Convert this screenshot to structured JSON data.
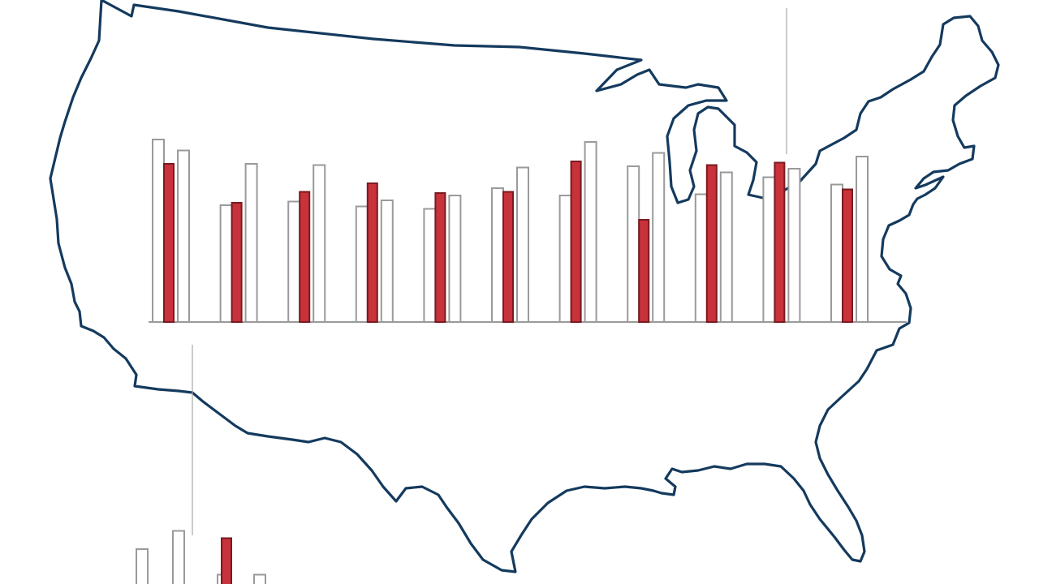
{
  "colors": {
    "outline": "#143a5e",
    "bar_red": "#c8323a",
    "bar_red_edge": "#7a1a20",
    "bar_outline": "#9a9a9a",
    "guide": "#a8a8a8",
    "baseline": "#9a9a9a"
  },
  "chart_data": [
    {
      "type": "bar",
      "title": "",
      "xlabel": "",
      "ylabel": "",
      "grid": false,
      "legend": "none",
      "categories": [
        "",
        "",
        "",
        "",
        "",
        "",
        "",
        "",
        "",
        "",
        ""
      ],
      "ylim": [
        0,
        160
      ],
      "series": [
        {
          "style": "outline",
          "values": [
            150,
            96,
            99,
            95,
            93,
            110,
            104,
            128,
            105,
            119,
            113
          ]
        },
        {
          "style": "red",
          "values": [
            130,
            98,
            107,
            114,
            106,
            107,
            132,
            84,
            129,
            131,
            109
          ]
        },
        {
          "style": "outline",
          "values": [
            141,
            130,
            129,
            100,
            104,
            127,
            148,
            139,
            123,
            126,
            136
          ]
        }
      ]
    },
    {
      "type": "bar",
      "title": "",
      "xlabel": "",
      "ylabel": "",
      "grid": false,
      "legend": "none",
      "partially_visible": true,
      "categories": [
        "",
        ""
      ],
      "ylim": [
        0,
        160
      ],
      "series": [
        {
          "style": "outline",
          "values": [
            30,
            9
          ]
        },
        {
          "style": "red",
          "values": [
            null,
            39
          ]
        },
        {
          "style": "outline",
          "values": [
            45,
            9
          ]
        }
      ]
    }
  ]
}
